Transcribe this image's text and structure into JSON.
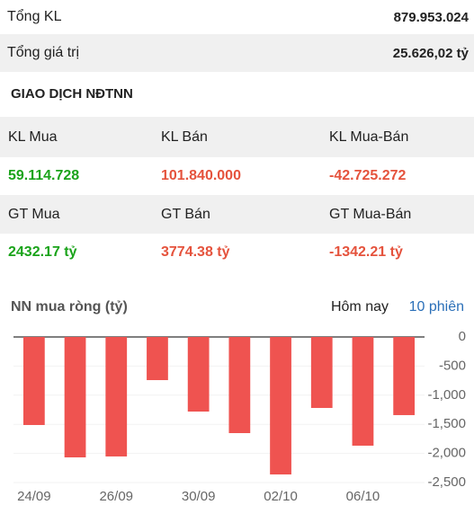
{
  "summary": [
    {
      "label": "Tổng KL",
      "value": "879.953.024"
    },
    {
      "label": "Tổng giá trị",
      "value": "25.626,02 tỷ"
    }
  ],
  "section_title": "GIAO DỊCH NĐTNN",
  "foreign_rows": [
    {
      "headers": [
        "KL Mua",
        "KL Bán",
        "KL Mua-Bán"
      ],
      "values": [
        "59.114.728",
        "101.840.000",
        "-42.725.272"
      ]
    },
    {
      "headers": [
        "GT Mua",
        "GT Bán",
        "GT Mua-Bán"
      ],
      "values": [
        "2432.17 tỷ",
        "3774.38 tỷ",
        "-1342.21 tỷ"
      ]
    }
  ],
  "tabs": [
    "Hôm nay",
    "10 phiên"
  ],
  "chart_data": {
    "type": "bar",
    "title": "NN mua ròng (tỷ)",
    "categories": [
      "24/09",
      null,
      "26/09",
      null,
      "30/09",
      null,
      "02/10",
      null,
      "06/10",
      null
    ],
    "values": [
      -1512,
      -2068,
      -2052,
      -741,
      -1281,
      -1651,
      -2361,
      -1219,
      -1867,
      -1342
    ],
    "color": "#ef5350",
    "ylim": [
      -2500,
      0
    ],
    "yticks": [
      0,
      -500,
      {
        "value": -1000,
        "label": "-1,000"
      },
      {
        "value": -1500,
        "label": "-1,500"
      },
      {
        "value": -2000,
        "label": "-2,000"
      },
      {
        "value": -2500,
        "label": "-2,500"
      }
    ],
    "grid": true
  }
}
